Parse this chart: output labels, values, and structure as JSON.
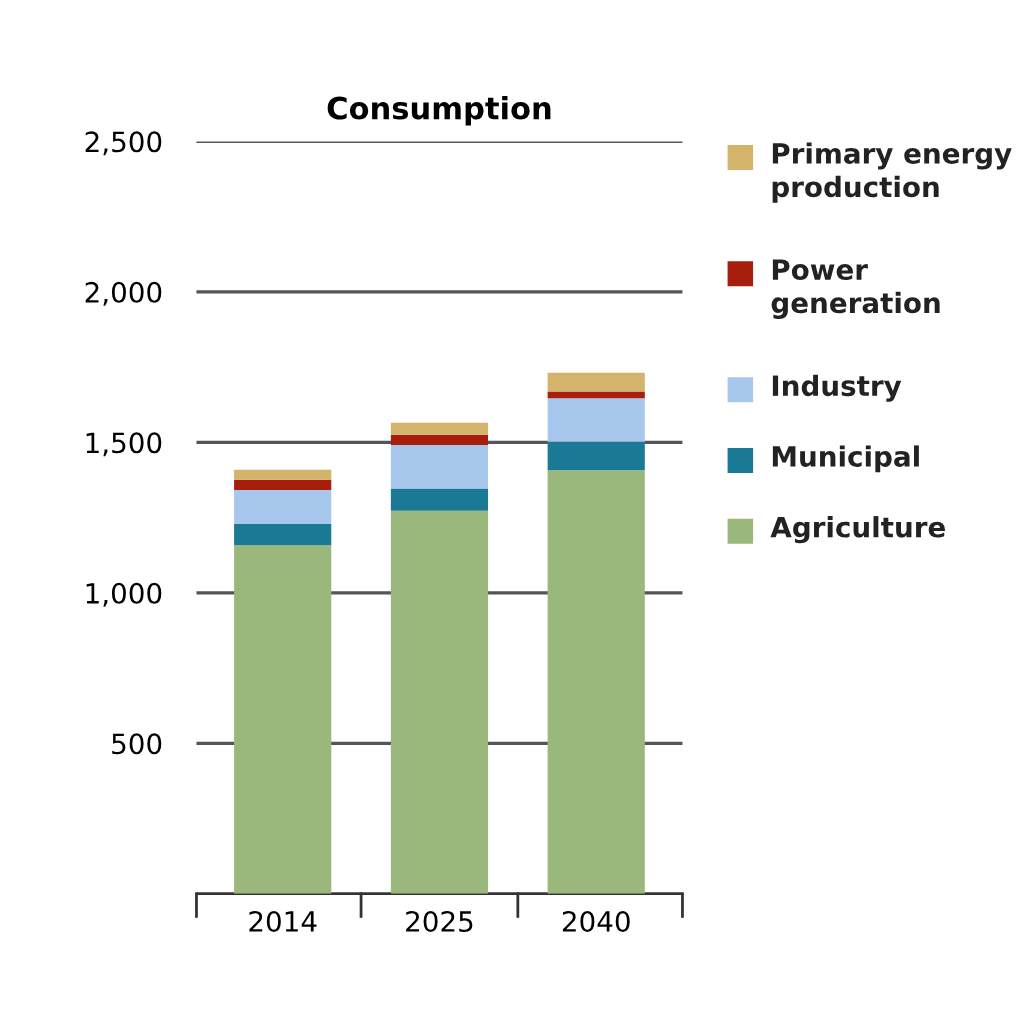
{
  "chart_data": {
    "type": "bar",
    "title": "Consumption",
    "stacked": true,
    "categories": [
      "2014",
      "2025",
      "2040"
    ],
    "series": [
      {
        "name": "Agriculture",
        "color": "#9bb87c",
        "values": [
          1158,
          1273,
          1407
        ]
      },
      {
        "name": "Municipal",
        "color": "#1a7a96",
        "values": [
          71,
          74,
          95
        ]
      },
      {
        "name": "Industry",
        "color": "#a7c8ec",
        "values": [
          113,
          144,
          145
        ]
      },
      {
        "name": "Power generation",
        "color": "#a81e0c",
        "values": [
          34,
          34,
          22
        ]
      },
      {
        "name": "Primary energy production",
        "color": "#d4b46a",
        "values": [
          33,
          40,
          62
        ]
      }
    ],
    "ylim": [
      0,
      2500
    ],
    "yticks": [
      {
        "value": 0,
        "label": null
      },
      500,
      {
        "value": 1000,
        "label": "1,000"
      },
      {
        "value": 1500,
        "label": "1,500"
      },
      {
        "value": 2000,
        "label": "2,000"
      },
      {
        "value": 2500,
        "label": "2,500"
      }
    ],
    "grid": "y",
    "legend": "right"
  }
}
